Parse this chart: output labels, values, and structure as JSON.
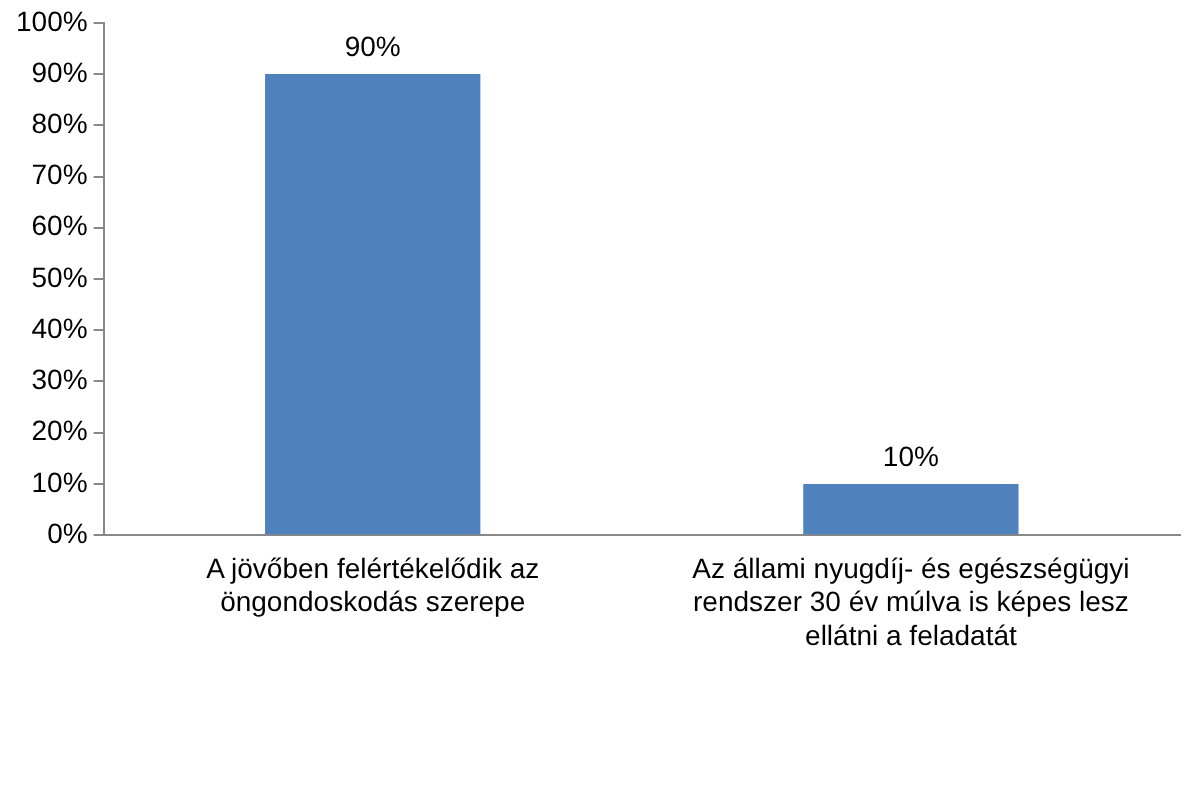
{
  "chart_data": {
    "type": "bar",
    "categories": [
      "A jövőben felértékelődik az öngondoskodás szerepe",
      "Az állami nyugdíj- és egészségügyi rendszer 30 év múlva is képes lesz ellátni a feladatát"
    ],
    "values": [
      90,
      10
    ],
    "value_labels": [
      "90%",
      "10%"
    ],
    "color": "#4f81bd",
    "ylim": [
      0,
      100
    ],
    "yticks": [
      {
        "value": 0,
        "label": "0%"
      },
      {
        "value": 10,
        "label": "10%"
      },
      {
        "value": 20,
        "label": "20%"
      },
      {
        "value": 30,
        "label": "30%"
      },
      {
        "value": 40,
        "label": "40%"
      },
      {
        "value": 50,
        "label": "50%"
      },
      {
        "value": 60,
        "label": "60%"
      },
      {
        "value": 70,
        "label": "70%"
      },
      {
        "value": 80,
        "label": "80%"
      },
      {
        "value": 90,
        "label": "90%"
      },
      {
        "value": 100,
        "label": "100%"
      }
    ],
    "grid": false,
    "legend": false
  }
}
